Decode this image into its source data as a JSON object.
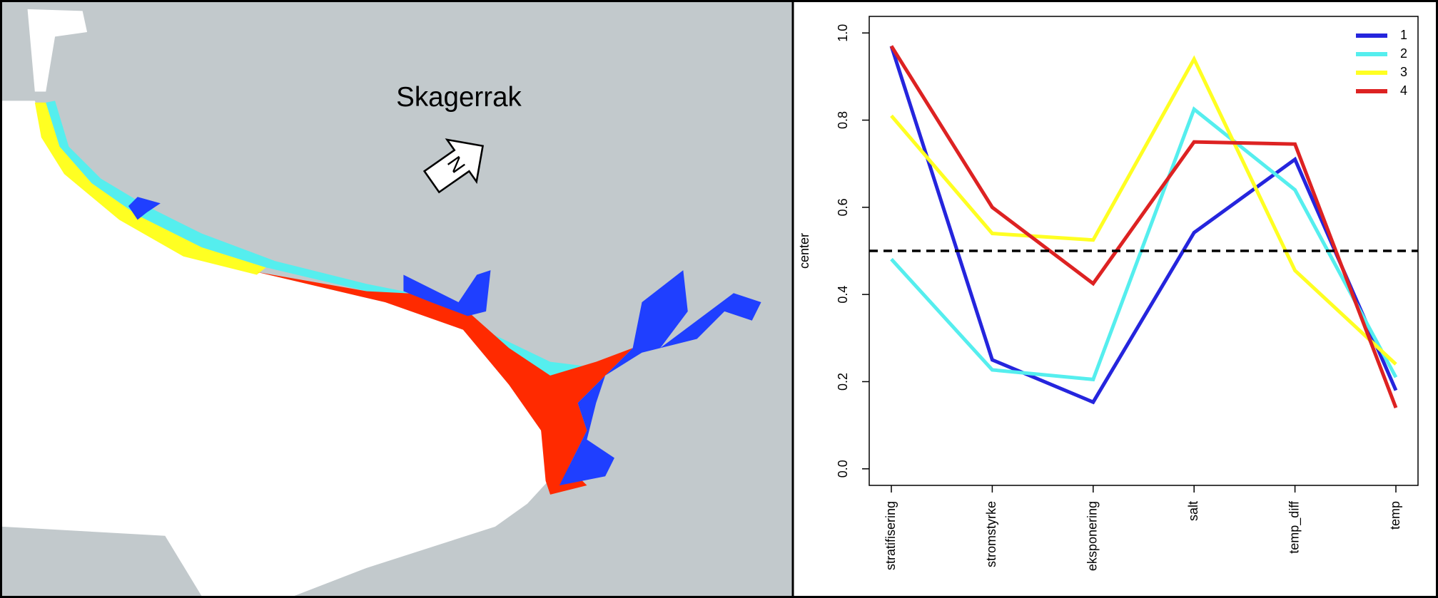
{
  "map": {
    "label": "Skagerrak",
    "north": "N"
  },
  "chart_data": {
    "type": "line",
    "y_label": "center",
    "categories": [
      "stratifisering",
      "stromstyrke",
      "eksponering",
      "salt",
      "temp_diff",
      "temp"
    ],
    "series": [
      {
        "name": "1",
        "color": "#2525dd",
        "values": [
          0.97,
          0.25,
          0.153,
          0.542,
          0.71,
          0.18
        ]
      },
      {
        "name": "2",
        "color": "#55eeee",
        "values": [
          0.481,
          0.227,
          0.205,
          0.825,
          0.64,
          0.21
        ]
      },
      {
        "name": "3",
        "color": "#ffff22",
        "values": [
          0.81,
          0.54,
          0.525,
          0.94,
          0.455,
          0.24
        ]
      },
      {
        "name": "4",
        "color": "#dd2222",
        "values": [
          0.97,
          0.6,
          0.425,
          0.75,
          0.745,
          0.14
        ]
      }
    ],
    "hline": 0.5,
    "ylim": [
      -0.038,
      1.038
    ],
    "yticks": [
      {
        "value": 0,
        "label": "0.0"
      },
      0.2,
      0.4,
      0.6,
      0.8,
      {
        "value": 1,
        "label": "1.0"
      }
    ],
    "legend": "top-right"
  }
}
